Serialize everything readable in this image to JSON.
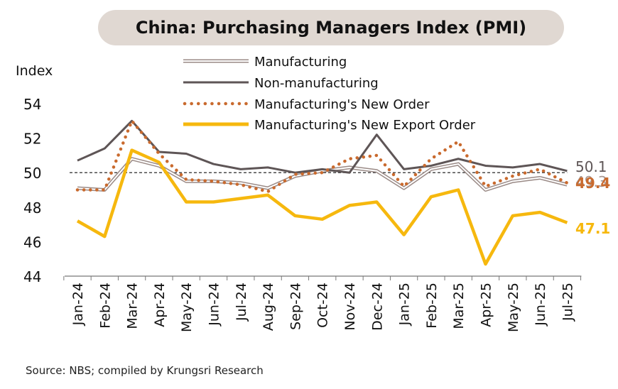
{
  "chart_data": {
    "type": "line",
    "title": "China: Purchasing Managers Index (PMI)",
    "ylabel": "Index",
    "xlabel": "",
    "ylim": [
      44,
      54
    ],
    "yticks": [
      44,
      46,
      48,
      50,
      52,
      54
    ],
    "reference_line": 50,
    "grid": false,
    "legend_position": "top",
    "categories": [
      "Jan-24",
      "Feb-24",
      "Mar-24",
      "Apr-24",
      "May-24",
      "Jun-24",
      "Jul-24",
      "Aug-24",
      "Sep-24",
      "Oct-24",
      "Nov-24",
      "Dec-24",
      "Jan-25",
      "Feb-25",
      "Mar-25",
      "Apr-25",
      "May-25",
      "Jun-25",
      "Jul-25"
    ],
    "series": [
      {
        "name": "Manufacturing",
        "style": "double-line",
        "color": "#9a8a86",
        "values": [
          49.1,
          49.0,
          50.8,
          50.4,
          49.5,
          49.5,
          49.4,
          49.1,
          49.8,
          50.1,
          50.3,
          50.1,
          49.1,
          50.2,
          50.5,
          49.0,
          49.5,
          49.7,
          49.3
        ],
        "end_label": "49.3"
      },
      {
        "name": "Non-manufacturing",
        "style": "solid",
        "color": "#5e5556",
        "values": [
          50.7,
          51.4,
          53.0,
          51.2,
          51.1,
          50.5,
          50.2,
          50.3,
          50.0,
          50.2,
          50.0,
          52.2,
          50.2,
          50.4,
          50.8,
          50.4,
          50.3,
          50.5,
          50.1
        ],
        "end_label": "50.1"
      },
      {
        "name": "Manufacturing's New Order",
        "style": "dotted",
        "color": "#c96a2e",
        "values": [
          49.0,
          49.0,
          53.0,
          51.1,
          49.6,
          49.5,
          49.3,
          48.9,
          49.9,
          50.0,
          50.8,
          51.0,
          49.2,
          50.8,
          51.8,
          49.2,
          49.8,
          50.2,
          49.4
        ],
        "end_label": "49.4"
      },
      {
        "name": "Manufacturing's New Export Order",
        "style": "thick",
        "color": "#f6b80e",
        "values": [
          47.2,
          46.3,
          51.3,
          50.6,
          48.3,
          48.3,
          48.5,
          48.7,
          47.5,
          47.3,
          48.1,
          48.3,
          46.4,
          48.6,
          49.0,
          44.7,
          47.5,
          47.7,
          47.1
        ],
        "end_label": "47.1"
      }
    ]
  },
  "source": "Source: NBS; compiled by Krungsri Research"
}
